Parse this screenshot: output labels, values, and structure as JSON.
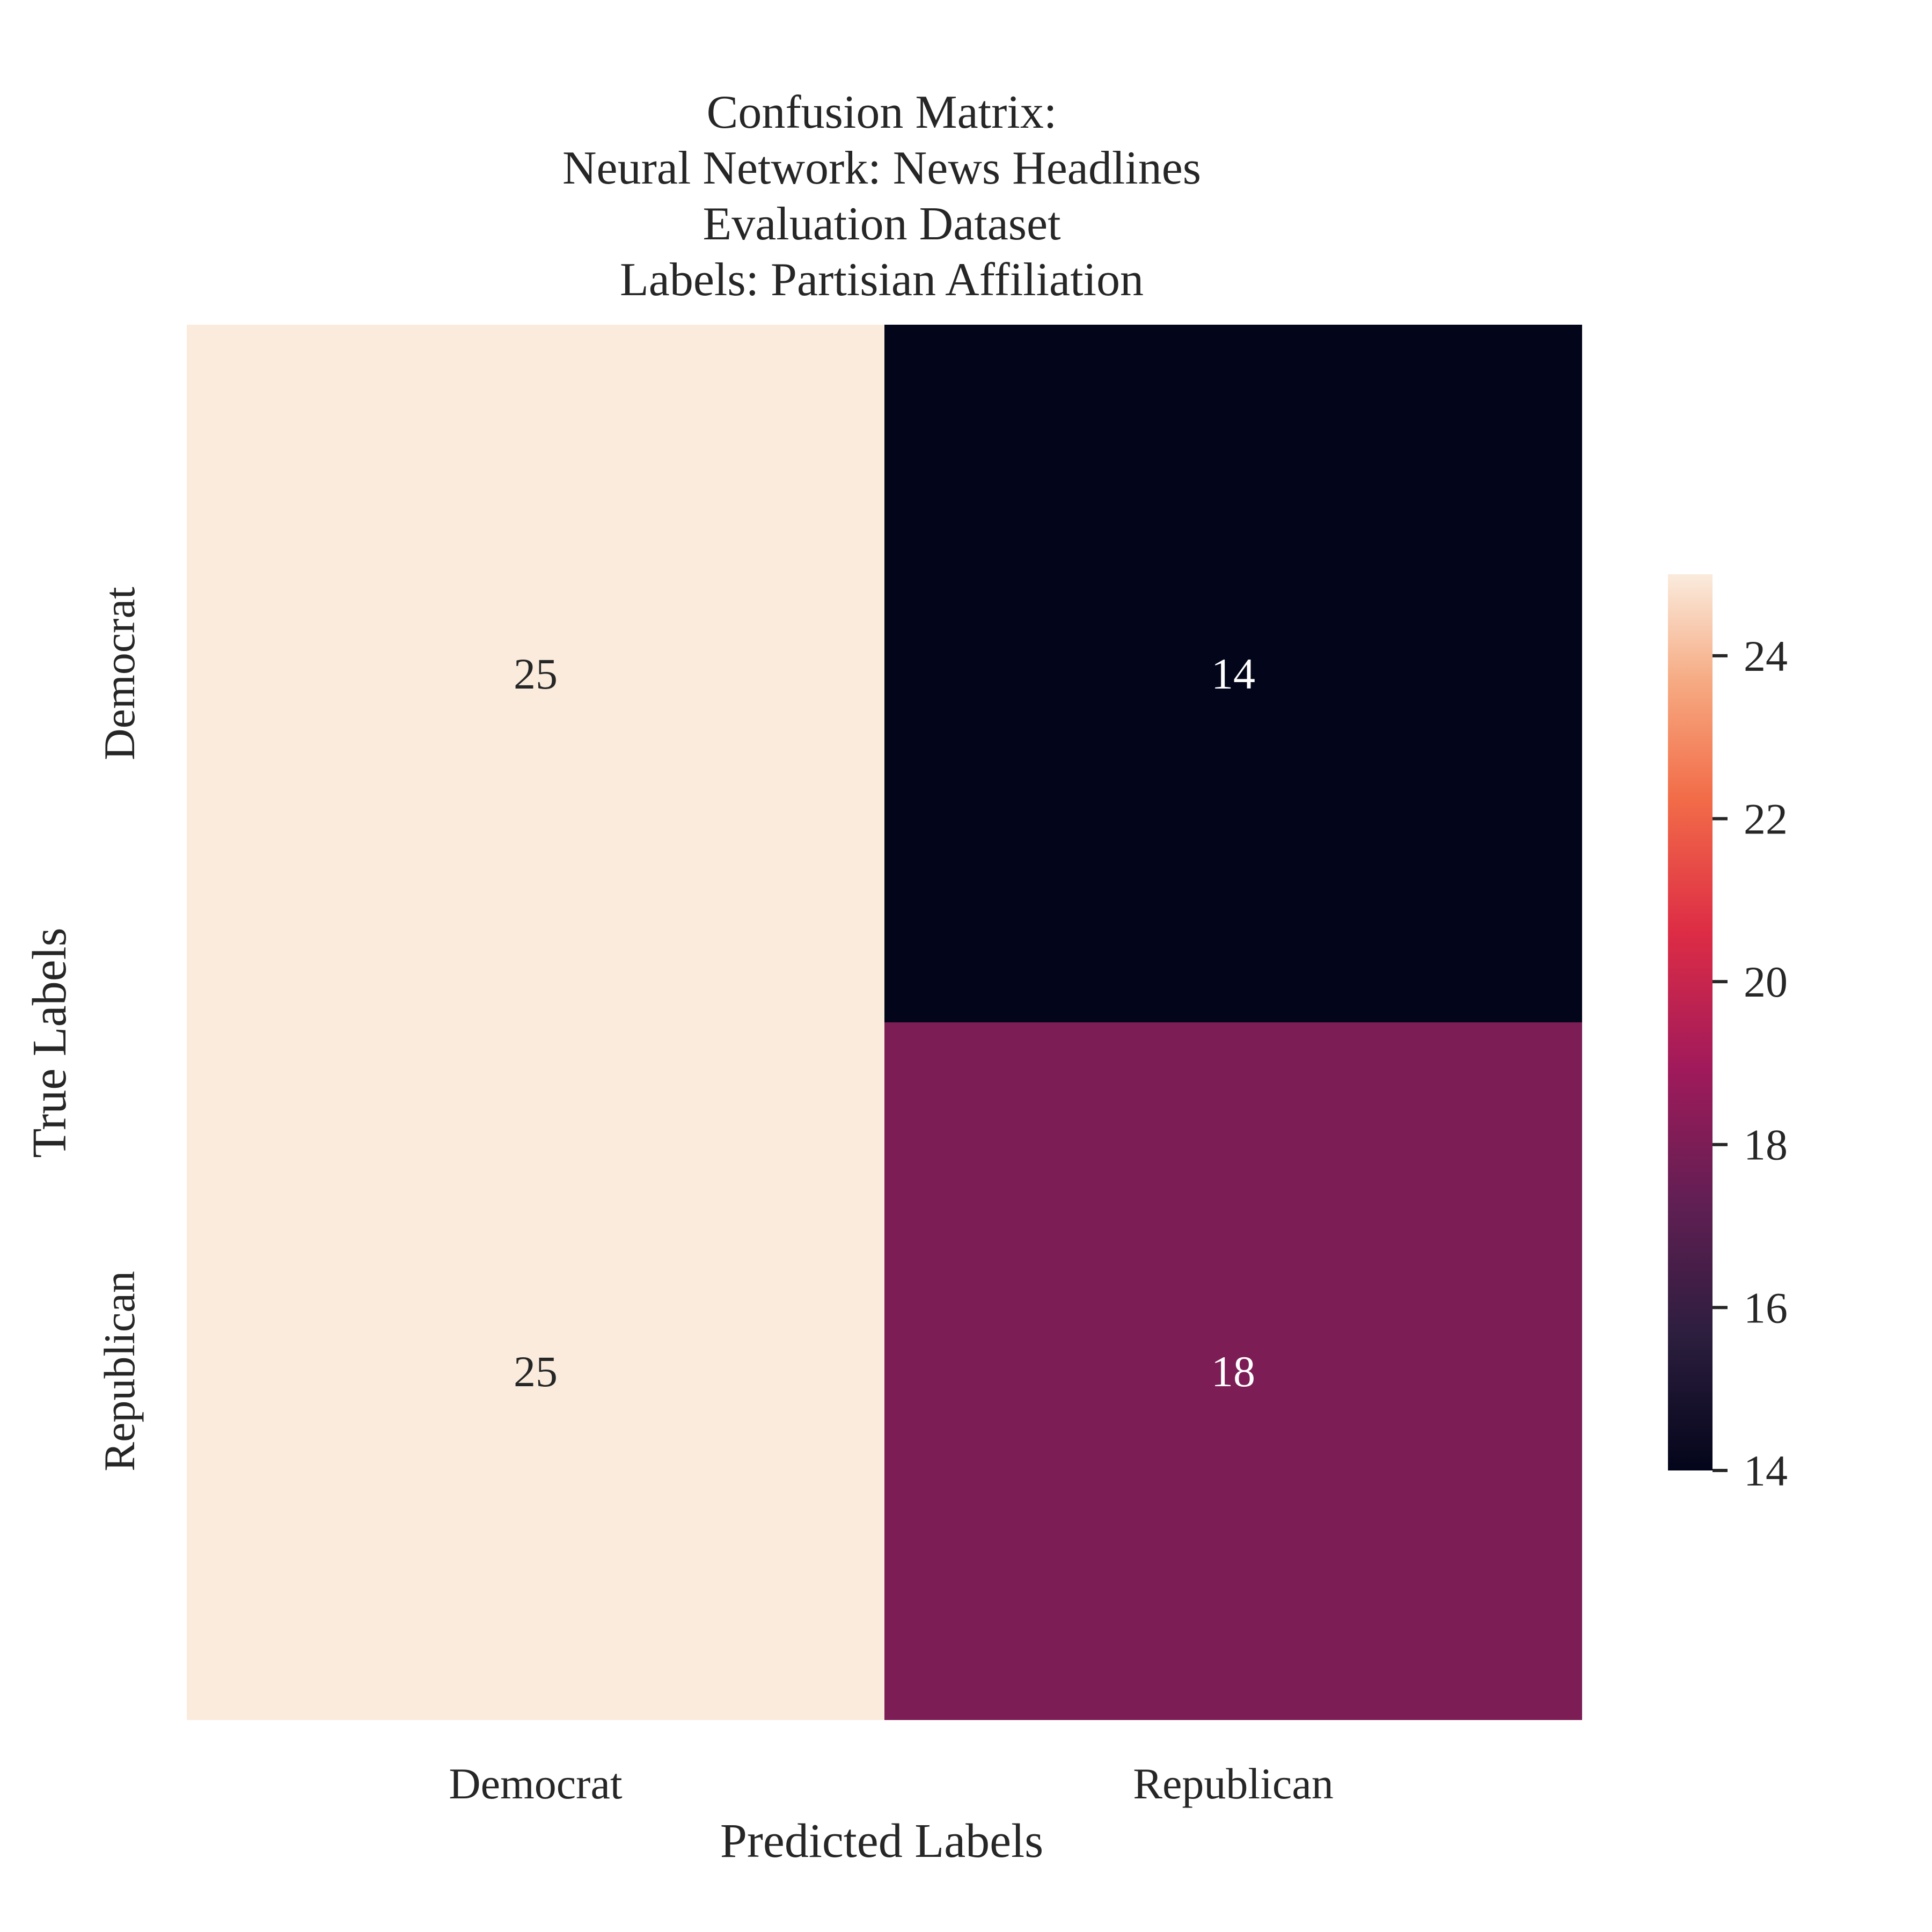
{
  "chart_data": {
    "type": "heatmap",
    "title_lines": [
      "Confusion Matrix:",
      "Neural Network: News Headlines",
      "Evaluation Dataset",
      "Labels: Partisian Affiliation"
    ],
    "xlabel": "Predicted Labels",
    "ylabel": "True Labels",
    "x_categories": [
      "Democrat",
      "Republican"
    ],
    "y_categories": [
      "Democrat",
      "Republican"
    ],
    "values": [
      [
        25,
        14
      ],
      [
        25,
        18
      ]
    ],
    "colorbar": {
      "min": 14,
      "max": 25,
      "ticks": [
        14,
        16,
        18,
        20,
        22,
        24
      ],
      "tick_labels": [
        "14",
        "16",
        "18",
        "20",
        "22",
        "24"
      ],
      "colormap": "rocket"
    },
    "legend_position": "right"
  }
}
